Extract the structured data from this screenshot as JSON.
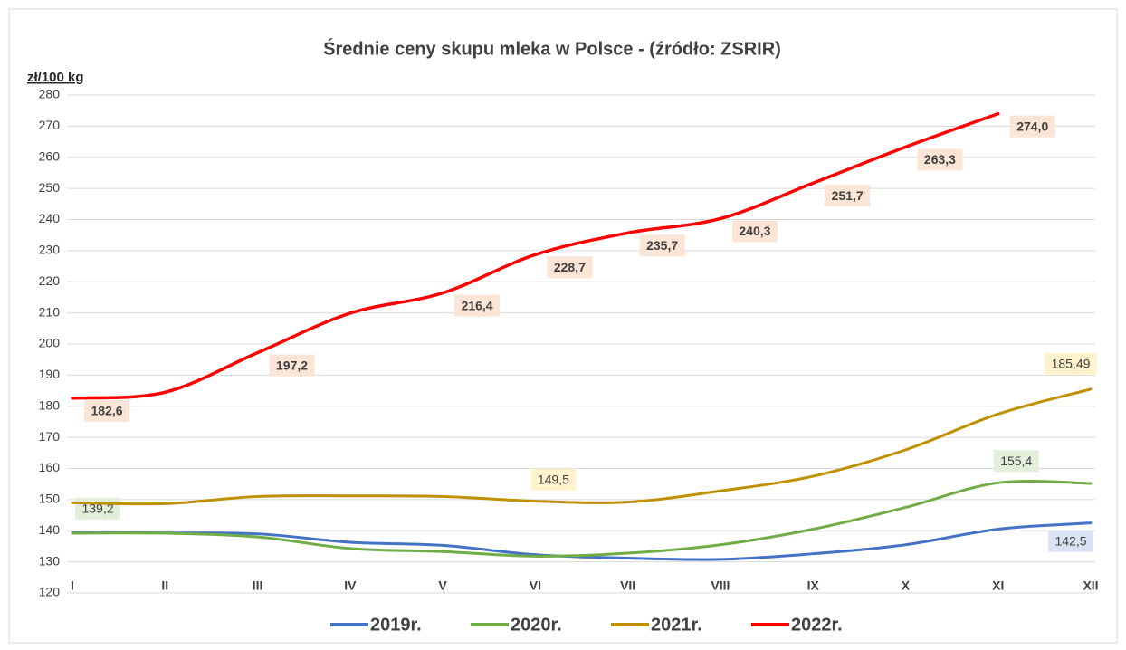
{
  "chart_data": {
    "type": "line",
    "title": "Średnie ceny skupu mleka w Polsce - (źródło: ZSRIR)",
    "y_label": "zł/100 kg",
    "categories": [
      "I",
      "II",
      "III",
      "IV",
      "V",
      "VI",
      "VII",
      "VIII",
      "IX",
      "X",
      "XI",
      "XII"
    ],
    "ylim": [
      120,
      280
    ],
    "yticks": [
      120,
      130,
      140,
      150,
      160,
      170,
      180,
      190,
      200,
      210,
      220,
      230,
      240,
      250,
      260,
      270,
      280
    ],
    "grid": true,
    "legend": "bottom",
    "series": [
      {
        "name": "2019r.",
        "color": "#4472c4",
        "label_color": "#dae3f3",
        "values": [
          139.5,
          139.3,
          139,
          136.3,
          135.3,
          132.3,
          131.2,
          130.8,
          132.6,
          135.5,
          140.5,
          142.5
        ],
        "value_labels": [
          null,
          null,
          null,
          null,
          null,
          null,
          null,
          null,
          null,
          null,
          null,
          "142,5"
        ]
      },
      {
        "name": "2020r.",
        "color": "#70ad47",
        "label_color": "#e2efda",
        "values": [
          139.2,
          139.2,
          138,
          134.3,
          133.3,
          131.8,
          132.8,
          135.5,
          140.5,
          147.5,
          155.4,
          155.2
        ],
        "value_labels": [
          "139,2",
          null,
          null,
          null,
          null,
          null,
          null,
          null,
          null,
          null,
          "155,4",
          null
        ]
      },
      {
        "name": "2021r.",
        "color": "#bf9000",
        "label_color": "#fff2cc",
        "values": [
          149,
          148.7,
          151,
          151.2,
          151,
          149.5,
          149.2,
          152.8,
          157.5,
          166,
          177.5,
          185.49
        ],
        "value_labels": [
          null,
          null,
          null,
          null,
          null,
          "149,5",
          null,
          null,
          null,
          null,
          null,
          "185,49"
        ]
      },
      {
        "name": "2022r.",
        "color": "#ff0000",
        "label_color": "#fbe5d6",
        "values": [
          182.6,
          184.5,
          197.2,
          209.9,
          216.4,
          228.7,
          235.7,
          240.3,
          251.7,
          263.3,
          274.0,
          null
        ],
        "value_labels": [
          "182,6",
          null,
          "197,2",
          null,
          "216,4",
          "228,7",
          "235,7",
          "240,3",
          "251,7",
          "263,3",
          "274,0",
          null
        ]
      }
    ]
  }
}
